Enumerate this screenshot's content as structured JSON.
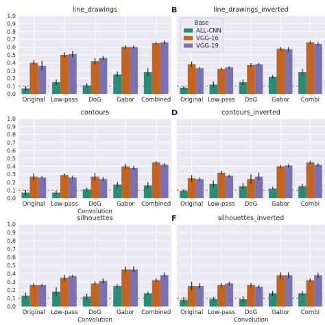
{
  "chart_data": [
    {
      "type": "bar",
      "panel_label": "",
      "title": "line_drawings",
      "categories": [
        "Original",
        "Low-pass",
        "DoG",
        "Gabor",
        "Combined"
      ],
      "ylim": [
        0,
        1
      ],
      "yticks": [
        "0.0",
        "0.1",
        "0.2",
        "0.3",
        "0.4",
        "0.5",
        "0.6",
        "0.7",
        "0.8",
        "0.9",
        "1.0"
      ],
      "xlabel": "",
      "chance_level": 0.1,
      "series": [
        {
          "name": "ALL-CNN",
          "values": [
            0.07,
            0.15,
            0.11,
            0.25,
            0.28
          ],
          "errors": [
            0.03,
            0.035,
            0.025,
            0.035,
            0.05
          ]
        },
        {
          "name": "VGG-16",
          "values": [
            0.4,
            0.5,
            0.42,
            0.6,
            0.65
          ],
          "errors": [
            0.03,
            0.035,
            0.04,
            0.02,
            0.015
          ]
        },
        {
          "name": "VGG-19",
          "values": [
            0.36,
            0.51,
            0.46,
            0.6,
            0.66
          ],
          "errors": [
            0.06,
            0.04,
            0.025,
            0.02,
            0.02
          ]
        }
      ]
    },
    {
      "type": "bar",
      "panel_label": "B",
      "title": "line_drawings_inverted",
      "categories": [
        "Original",
        "Low-pass",
        "DoG",
        "Gabor",
        "Combi"
      ],
      "ylim": [
        0,
        1
      ],
      "yticks": [],
      "xlabel": "",
      "chance_level": 0.1,
      "series": [
        {
          "name": "ALL-CNN",
          "values": [
            0.08,
            0.12,
            0.15,
            0.22,
            0.28
          ],
          "errors": [
            0.02,
            0.04,
            0.035,
            0.02,
            0.04
          ]
        },
        {
          "name": "VGG-16",
          "values": [
            0.38,
            0.32,
            0.37,
            0.58,
            0.66
          ],
          "errors": [
            0.035,
            0.015,
            0.025,
            0.02,
            0.02
          ]
        },
        {
          "name": "VGG-19",
          "values": [
            0.33,
            0.34,
            0.38,
            0.57,
            0.64
          ],
          "errors": [
            0.015,
            0.015,
            0.02,
            0.03,
            0.02
          ]
        }
      ]
    },
    {
      "type": "bar",
      "panel_label": "",
      "title": "contours",
      "categories": [
        "Original",
        "Low-pass",
        "DoG",
        "Gabor",
        "Combined"
      ],
      "ylim": [
        0,
        1
      ],
      "yticks": [
        "0.0",
        "0.1",
        "0.2",
        "0.3",
        "0.4",
        "0.5",
        "0.6",
        "0.7",
        "0.8",
        "0.9",
        "1.0"
      ],
      "xlabel": "Convolution",
      "chance_level": 0.1,
      "series": [
        {
          "name": "ALL-CNN",
          "values": [
            0.07,
            0.07,
            0.11,
            0.17,
            0.16
          ],
          "errors": [
            0.035,
            0.02,
            0.02,
            0.035,
            0.04
          ]
        },
        {
          "name": "VGG-16",
          "values": [
            0.27,
            0.29,
            0.27,
            0.4,
            0.45
          ],
          "errors": [
            0.045,
            0.02,
            0.05,
            0.03,
            0.015
          ]
        },
        {
          "name": "VGG-19",
          "values": [
            0.26,
            0.26,
            0.24,
            0.38,
            0.42
          ],
          "errors": [
            0.015,
            0.02,
            0.025,
            0.025,
            0.02
          ]
        }
      ]
    },
    {
      "type": "bar",
      "panel_label": "D",
      "title": "contours_inverted",
      "categories": [
        "Original",
        "Low-pass",
        "DoG",
        "Gabor",
        "Combi"
      ],
      "ylim": [
        0,
        1
      ],
      "yticks": [],
      "xlabel": "",
      "chance_level": 0.1,
      "series": [
        {
          "name": "ALL-CNN",
          "values": [
            0.09,
            0.18,
            0.15,
            0.12,
            0.15
          ],
          "errors": [
            0.02,
            0.04,
            0.04,
            0.02,
            0.03
          ]
        },
        {
          "name": "VGG-16",
          "values": [
            0.25,
            0.32,
            0.24,
            0.4,
            0.45
          ],
          "errors": [
            0.04,
            0.025,
            0.06,
            0.02,
            0.02
          ]
        },
        {
          "name": "VGG-19",
          "values": [
            0.24,
            0.28,
            0.27,
            0.41,
            0.42
          ],
          "errors": [
            0.02,
            0.015,
            0.05,
            0.02,
            0.02
          ]
        }
      ]
    },
    {
      "type": "bar",
      "panel_label": "",
      "title": "silhouettes",
      "categories": [
        "Original",
        "Low-pass",
        "DoG",
        "Gabor",
        "Combined"
      ],
      "ylim": [
        0,
        1
      ],
      "yticks": [
        "0.0",
        "0.1",
        "0.2",
        "0.3",
        "0.4",
        "0.5",
        "0.6",
        "0.7",
        "0.8",
        "0.9",
        "1.0"
      ],
      "xlabel": "Convolution",
      "chance_level": 0.1,
      "series": [
        {
          "name": "ALL-CNN",
          "values": [
            0.13,
            0.18,
            0.12,
            0.25,
            0.16
          ],
          "errors": [
            0.035,
            0.055,
            0.035,
            0.02,
            0.02
          ]
        },
        {
          "name": "VGG-16",
          "values": [
            0.26,
            0.35,
            0.28,
            0.45,
            0.32
          ],
          "errors": [
            0.025,
            0.035,
            0.025,
            0.035,
            0.02
          ]
        },
        {
          "name": "VGG-19",
          "values": [
            0.26,
            0.37,
            0.31,
            0.45,
            0.38
          ],
          "errors": [
            0.015,
            0.015,
            0.03,
            0.035,
            0.03
          ]
        }
      ]
    },
    {
      "type": "bar",
      "panel_label": "F",
      "title": "silhouettes_inverted",
      "categories": [
        "Original",
        "Low-pass",
        "DoG",
        "Gabor",
        "Combi"
      ],
      "ylim": [
        0,
        1
      ],
      "yticks": [],
      "xlabel": "Convolution",
      "chance_level": 0.1,
      "series": [
        {
          "name": "ALL-CNN",
          "values": [
            0.08,
            0.09,
            0.09,
            0.16,
            0.16
          ],
          "errors": [
            0.035,
            0.025,
            0.035,
            0.03,
            0.03
          ]
        },
        {
          "name": "VGG-16",
          "values": [
            0.25,
            0.26,
            0.26,
            0.38,
            0.32
          ],
          "errors": [
            0.05,
            0.025,
            0.025,
            0.035,
            0.02
          ]
        },
        {
          "name": "VGG-19",
          "values": [
            0.25,
            0.28,
            0.24,
            0.38,
            0.38
          ],
          "errors": [
            0.03,
            0.02,
            0.02,
            0.035,
            0.03
          ]
        }
      ]
    }
  ],
  "legend": {
    "title": "Base",
    "placement": "upper-left of panel B",
    "entries": [
      "ALL-CNN",
      "VGG-16",
      "VGG-19"
    ]
  },
  "colors": {
    "ALL-CNN": "#2a8c72",
    "VGG-16": "#c4631d",
    "VGG-19": "#7a72b0",
    "panel_background": "#eaeaf2"
  }
}
